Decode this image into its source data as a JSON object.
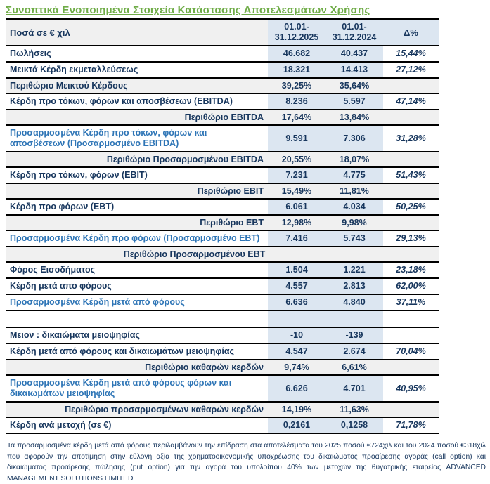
{
  "title": "Συνοπτικά Ενοποιημένα  Στοιχεία Κατάστασης Αποτελεσμάτων Χρήσης",
  "colors": {
    "title_green": "#6FAC47",
    "text_navy": "#17365D",
    "adjusted_blue": "#2E75B6",
    "value_column_bg": "#DCE6F1",
    "margin_row_bg": "#F0F0F0",
    "row_border": "#000000"
  },
  "table": {
    "header": {
      "label": "Ποσά σε € χιλ",
      "period_2025": {
        "line1": "01.01-",
        "line2": "31.12.2025"
      },
      "period_2024": {
        "line1": "01.01-",
        "line2": "31.12.2024"
      },
      "delta": "Δ%"
    },
    "rows": [
      {
        "type": "data",
        "style": "normal",
        "label": "Πωλήσεις",
        "v2025": "46.682",
        "v2024": "40.437",
        "delta": "15,44%"
      },
      {
        "type": "data",
        "style": "normal",
        "label": "Μεικτά Κέρδη εκμεταλλεύσεως",
        "v2025": "18.321",
        "v2024": "14.413",
        "delta": "27,12%"
      },
      {
        "type": "margin",
        "align": "left",
        "label": "Περιθώριο Μεικτού Κέρδους",
        "v2025": "39,25%",
        "v2024": "35,64%",
        "delta": ""
      },
      {
        "type": "data",
        "style": "normal",
        "label": "Κέρδη προ τόκων, φόρων και αποσβέσεων (EBITDA)",
        "v2025": "8.236",
        "v2024": "5.597",
        "delta": "47,14%"
      },
      {
        "type": "margin",
        "align": "right",
        "label": "Περιθώριο EBITDA",
        "v2025": "17,64%",
        "v2024": "13,84%",
        "delta": ""
      },
      {
        "type": "data",
        "style": "adjusted",
        "label": "Προσαρμοσμένα Κέρδη προ τόκων, φόρων και αποσβέσεων (Προσαρμοσμένο EBITDA)",
        "v2025": "9.591",
        "v2024": "7.306",
        "delta": "31,28%"
      },
      {
        "type": "margin",
        "align": "right",
        "label": "Περιθώριο  Προσαρμοσμένου EBITDA",
        "v2025": "20,55%",
        "v2024": "18,07%",
        "delta": ""
      },
      {
        "type": "data",
        "style": "normal",
        "label": "Κέρδη προ τόκων, φόρων (EBIT)",
        "v2025": "7.231",
        "v2024": "4.775",
        "delta": "51,43%"
      },
      {
        "type": "margin",
        "align": "right",
        "label": "Περιθώριο EBIT",
        "v2025": "15,49%",
        "v2024": "11,81%",
        "delta": ""
      },
      {
        "type": "data",
        "style": "normal",
        "label": "Κέρδη προ φόρων (EBT)",
        "v2025": "6.061",
        "v2024": "4.034",
        "delta": "50,25%"
      },
      {
        "type": "margin",
        "align": "right",
        "label": "Περιθώριο EBT",
        "v2025": "12,98%",
        "v2024": "9,98%",
        "delta": ""
      },
      {
        "type": "data",
        "style": "adjusted",
        "label": "Προσαρμοσμένα Κέρδη προ φόρων (Προσαρμοσμένο EBT)",
        "v2025": "7.416",
        "v2024": "5.743",
        "delta": "29,13%"
      },
      {
        "type": "margin",
        "align": "center",
        "merged": true,
        "label": "Περιθώριο  Προσαρμοσμένου EBT",
        "v2025": "",
        "v2024": "",
        "delta": ""
      },
      {
        "type": "data",
        "style": "normal",
        "label": "Φόρος Εισοδήματος",
        "v2025": "1.504",
        "v2024": "1.221",
        "delta": "23,18%"
      },
      {
        "type": "data",
        "style": "normal",
        "label": "Κέρδη μετά απο φόρους",
        "v2025": "4.557",
        "v2024": "2.813",
        "delta": "62,00%"
      },
      {
        "type": "data",
        "style": "adjusted",
        "label": "Προσαρμοσμένα Κέρδη μετά από φόρους",
        "v2025": "6.636",
        "v2024": "4.840",
        "delta": "37,11%"
      },
      {
        "type": "empty",
        "style": "normal",
        "label": "",
        "v2025": "",
        "v2024": "",
        "delta": ""
      },
      {
        "type": "data",
        "style": "normal",
        "label": "Μειον : δικαιώματα μειοψηφίας",
        "v2025": "-10",
        "v2024": "-139",
        "delta": ""
      },
      {
        "type": "data",
        "style": "normal",
        "label": "Κέρδη  μετά από φόρους και δικαιωμάτων μειοψηφίας",
        "v2025": "4.547",
        "v2024": "2.674",
        "delta": "70,04%"
      },
      {
        "type": "margin",
        "align": "right",
        "label": "Περιθώριο καθαρών κερδών",
        "v2025": "9,74%",
        "v2024": "6,61%",
        "delta": ""
      },
      {
        "type": "data",
        "style": "adjusted",
        "label": "Προσαρμοσμένα Κέρδη  μετά από φόρους φόρων και δικαιωμάτων μειοψηφίας",
        "v2025": "6.626",
        "v2024": "4.701",
        "delta": "40,95%"
      },
      {
        "type": "margin",
        "align": "right",
        "label": "Περιθώριο προσαρμοσμένων καθαρών κερδών",
        "v2025": "14,19%",
        "v2024": "11,63%",
        "delta": ""
      },
      {
        "type": "data",
        "style": "normal",
        "label": "Κέρδη ανά μετοχή (σε €)",
        "v2025": "0,2161",
        "v2024": "0,1258",
        "delta": "71,78%"
      }
    ]
  },
  "footnote": "Τα προσαρμοσμένα κέρδη μετά από φόρους  περιλαμβάνουν την επίδραση  στα αποτελέσματα του 2025 ποσού  €724χιλ και του 2024 ποσού €318χιλ που αφορούν την αποτίμηση στην εύλογη αξία της  χρηματοοικονομικής υποχρέωσης του δικαιώματος προαίρεσης αγοράς (call option) και δικαιώματος προαίρεσης πώλησης (put option) για την αγορά του υπολοίπου 40% των μετοχών της θυγατρικής εταιρείας ADVANCED MANAGEMENT SOLUTIONS LIMITED"
}
